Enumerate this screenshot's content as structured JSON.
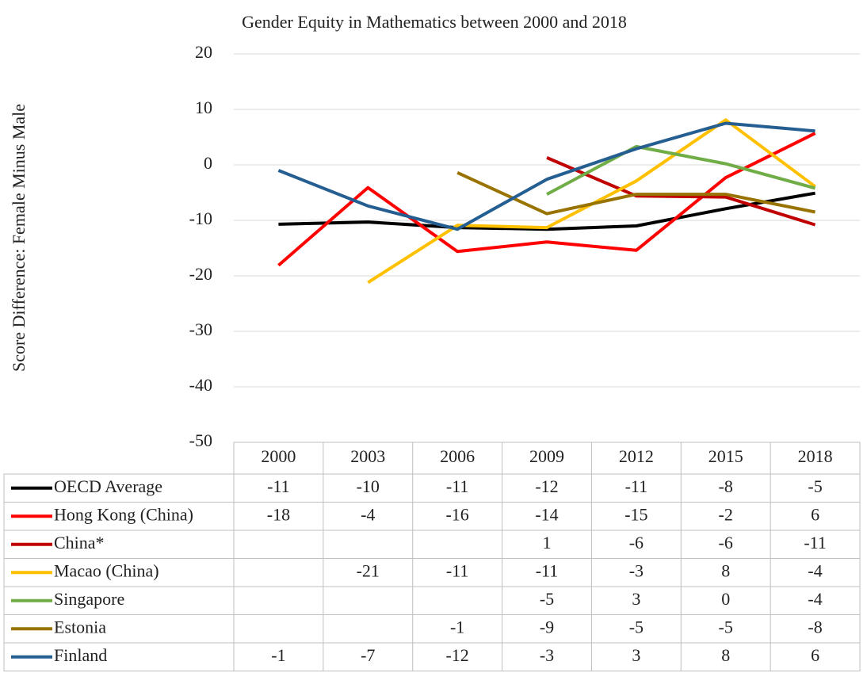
{
  "chart_data": {
    "type": "line",
    "title": "Gender Equity in Mathematics between 2000 and 2018",
    "y_label": "Score Difference: Female Minus Male",
    "categories": [
      "2000",
      "2003",
      "2006",
      "2009",
      "2012",
      "2015",
      "2018"
    ],
    "ylim": [
      -50,
      20
    ],
    "yticks": [
      -50,
      -40,
      -30,
      -20,
      -10,
      0,
      10,
      20
    ],
    "grid": true,
    "series": [
      {
        "name": "OECD Average",
        "color": "#000000",
        "values": [
          -10.7,
          -10.3,
          -11.3,
          -11.6,
          -11,
          -7.9,
          -5.1
        ],
        "value_labels": [
          "-11",
          "-10",
          "-11",
          "-12",
          "-11",
          "-8",
          "-5"
        ]
      },
      {
        "name": "Hong Kong (China)",
        "color": "#ff0000",
        "values": [
          -18.1,
          -4.1,
          -15.6,
          -13.9,
          -15.4,
          -2.3,
          5.7
        ],
        "value_labels": [
          "-18",
          "-4",
          "-16",
          "-14",
          "-15",
          "-2",
          "6"
        ]
      },
      {
        "name": "China*",
        "color": "#c00000",
        "values": [
          null,
          null,
          null,
          1.3,
          -5.6,
          -5.8,
          -10.8
        ],
        "value_labels": [
          null,
          null,
          null,
          "1",
          "-6",
          "-6",
          "-11"
        ]
      },
      {
        "name": "Macao (China)",
        "color": "#ffc000",
        "values": [
          null,
          -21.2,
          -10.9,
          -11.3,
          -2.9,
          8.1,
          -3.9
        ],
        "value_labels": [
          null,
          "-21",
          "-11",
          "-11",
          "-3",
          "8",
          "-4"
        ]
      },
      {
        "name": "Singapore",
        "color": "#70ad47",
        "values": [
          null,
          null,
          null,
          -5.3,
          3.3,
          0.2,
          -4.2
        ],
        "value_labels": [
          null,
          null,
          null,
          "-5",
          "3",
          "0",
          "-4"
        ]
      },
      {
        "name": "Estonia",
        "color": "#997300",
        "values": [
          null,
          null,
          -1.4,
          -8.8,
          -5.3,
          -5.3,
          -8.5
        ],
        "value_labels": [
          null,
          null,
          "-1",
          "-9",
          "-5",
          "-5",
          "-8"
        ]
      },
      {
        "name": "Finland",
        "color": "#255e91",
        "values": [
          -1,
          -7.4,
          -11.6,
          -2.6,
          2.9,
          7.5,
          6.1
        ],
        "value_labels": [
          "-1",
          "-7",
          "-12",
          "-3",
          "3",
          "8",
          "6"
        ]
      }
    ]
  }
}
